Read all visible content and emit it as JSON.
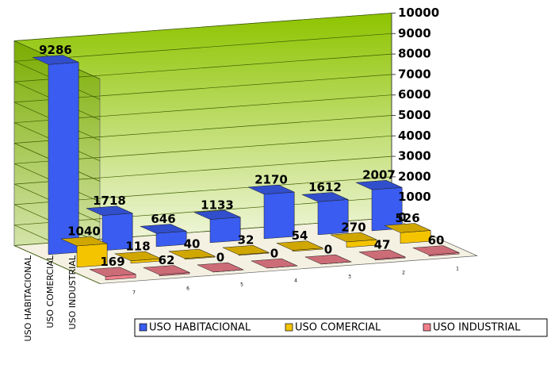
{
  "chart_data": {
    "type": "bar3d",
    "categories": [
      "7",
      "6",
      "5",
      "4",
      "3",
      "2",
      "1"
    ],
    "series": [
      {
        "name": "USO HABITACIONAL",
        "color": "#3a5cf0",
        "values": [
          9286,
          1718,
          646,
          1133,
          2170,
          1612,
          2007
        ]
      },
      {
        "name": "USO COMERCIAL",
        "color": "#f5c400",
        "values": [
          1040,
          118,
          40,
          32,
          54,
          270,
          526
        ]
      },
      {
        "name": "USO INDUSTRIAL",
        "color": "#f07f8c",
        "values": [
          169,
          62,
          0,
          0,
          0,
          47,
          60
        ]
      }
    ],
    "ylim": [
      0,
      10000
    ],
    "yticks": [
      0,
      1000,
      2000,
      3000,
      4000,
      5000,
      6000,
      7000,
      8000,
      9000,
      10000
    ],
    "grid": true,
    "legend": "bottom"
  }
}
